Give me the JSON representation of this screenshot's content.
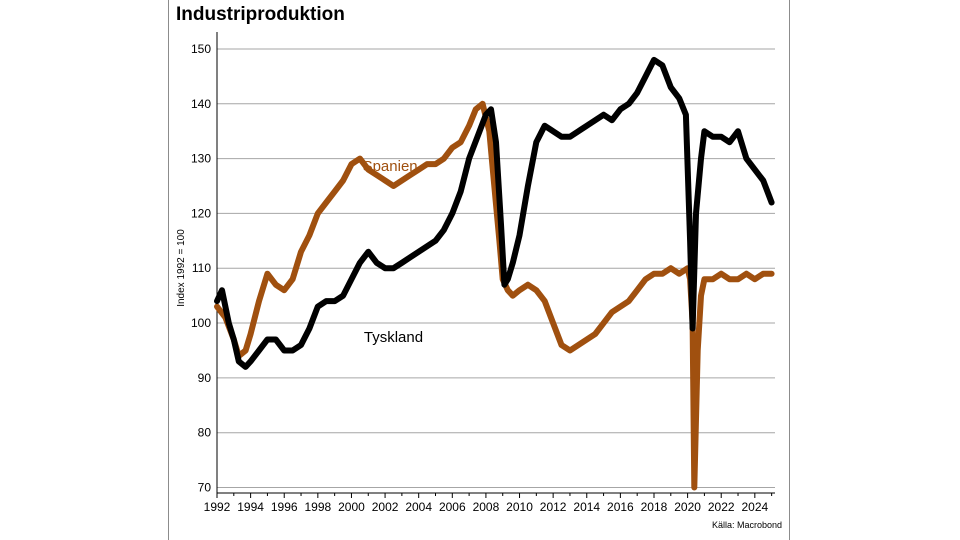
{
  "chart_data": {
    "type": "line",
    "title": "Industriproduktion",
    "ylabel": "Index 1992 = 100",
    "xlabel": "",
    "source": "Källa: Macrobond",
    "xlim": [
      1992,
      2025.2
    ],
    "ylim": [
      69,
      152
    ],
    "yticks": [
      70,
      80,
      90,
      100,
      110,
      120,
      130,
      140,
      150
    ],
    "ytick_labels": [
      "70",
      "80",
      "90",
      "100",
      "110",
      "120",
      "130",
      "140",
      "150"
    ],
    "xticks": [
      1992,
      1994,
      1996,
      1998,
      2000,
      2002,
      2004,
      2006,
      2008,
      2010,
      2012,
      2014,
      2016,
      2018,
      2020,
      2022,
      2024
    ],
    "xtick_labels": [
      "1992",
      "1994",
      "1996",
      "1998",
      "2000",
      "2002",
      "2004",
      "2006",
      "2008",
      "2010",
      "2012",
      "2014",
      "2016",
      "2018",
      "2020",
      "2022",
      "2024"
    ],
    "grid": "horizontal",
    "series": [
      {
        "name": "Spanien",
        "color": "#a0500f",
        "x": [
          1992.0,
          1992.5,
          1993.0,
          1993.3,
          1993.7,
          1994.0,
          1994.5,
          1995.0,
          1995.5,
          1996.0,
          1996.5,
          1997.0,
          1997.5,
          1998.0,
          1998.5,
          1999.0,
          1999.5,
          2000.0,
          2000.5,
          2001.0,
          2001.5,
          2002.0,
          2002.5,
          2003.0,
          2003.5,
          2004.0,
          2004.5,
          2005.0,
          2005.5,
          2006.0,
          2006.5,
          2007.0,
          2007.4,
          2007.8,
          2008.2,
          2008.5,
          2008.8,
          2009.0,
          2009.3,
          2009.6,
          2010.0,
          2010.5,
          2011.0,
          2011.5,
          2012.0,
          2012.5,
          2013.0,
          2013.5,
          2014.0,
          2014.5,
          2015.0,
          2015.5,
          2016.0,
          2016.5,
          2017.0,
          2017.5,
          2018.0,
          2018.5,
          2019.0,
          2019.5,
          2020.0,
          2020.15,
          2020.3,
          2020.4,
          2020.6,
          2020.8,
          2021.0,
          2021.5,
          2022.0,
          2022.5,
          2023.0,
          2023.5,
          2024.0,
          2024.5,
          2025.0
        ],
        "values": [
          103,
          101,
          97,
          94,
          95,
          98,
          104,
          109,
          107,
          106,
          108,
          113,
          116,
          120,
          122,
          124,
          126,
          129,
          130,
          128,
          127,
          126,
          125,
          126,
          127,
          128,
          129,
          129,
          130,
          132,
          133,
          136,
          139,
          140,
          135,
          125,
          115,
          108,
          106,
          105,
          106,
          107,
          106,
          104,
          100,
          96,
          95,
          96,
          97,
          98,
          100,
          102,
          103,
          104,
          106,
          108,
          109,
          109,
          110,
          109,
          110,
          108,
          100,
          70,
          95,
          105,
          108,
          108,
          109,
          108,
          108,
          109,
          108,
          109,
          109
        ]
      },
      {
        "name": "Tyskland",
        "color": "#000000",
        "x": [
          1992.0,
          1992.3,
          1992.7,
          1993.0,
          1993.3,
          1993.7,
          1994.0,
          1994.5,
          1995.0,
          1995.5,
          1996.0,
          1996.5,
          1997.0,
          1997.5,
          1998.0,
          1998.5,
          1999.0,
          1999.5,
          2000.0,
          2000.5,
          2001.0,
          2001.5,
          2002.0,
          2002.5,
          2003.0,
          2003.5,
          2004.0,
          2004.5,
          2005.0,
          2005.5,
          2006.0,
          2006.5,
          2007.0,
          2007.5,
          2008.0,
          2008.3,
          2008.6,
          2008.9,
          2009.1,
          2009.3,
          2009.6,
          2010.0,
          2010.5,
          2011.0,
          2011.5,
          2012.0,
          2012.5,
          2013.0,
          2013.5,
          2014.0,
          2014.5,
          2015.0,
          2015.5,
          2016.0,
          2016.5,
          2017.0,
          2017.5,
          2018.0,
          2018.5,
          2019.0,
          2019.5,
          2019.9,
          2020.15,
          2020.3,
          2020.5,
          2020.8,
          2021.0,
          2021.5,
          2022.0,
          2022.5,
          2023.0,
          2023.5,
          2024.0,
          2024.5,
          2025.0
        ],
        "values": [
          104,
          106,
          100,
          97,
          93,
          92,
          93,
          95,
          97,
          97,
          95,
          95,
          96,
          99,
          103,
          104,
          104,
          105,
          108,
          111,
          113,
          111,
          110,
          110,
          111,
          112,
          113,
          114,
          115,
          117,
          120,
          124,
          130,
          134,
          138,
          139,
          133,
          118,
          107,
          108,
          111,
          116,
          125,
          133,
          136,
          135,
          134,
          134,
          135,
          136,
          137,
          138,
          137,
          139,
          140,
          142,
          145,
          148,
          147,
          143,
          141,
          138,
          115,
          99,
          120,
          130,
          135,
          134,
          134,
          133,
          135,
          130,
          128,
          126,
          122
        ]
      }
    ],
    "annotations": [
      {
        "text": "Spanien",
        "x": 2002.3,
        "y": 127.7,
        "color": "#a0500f"
      },
      {
        "text": "Tyskland",
        "x": 2002.5,
        "y": 96.5,
        "color": "#000000"
      }
    ]
  }
}
